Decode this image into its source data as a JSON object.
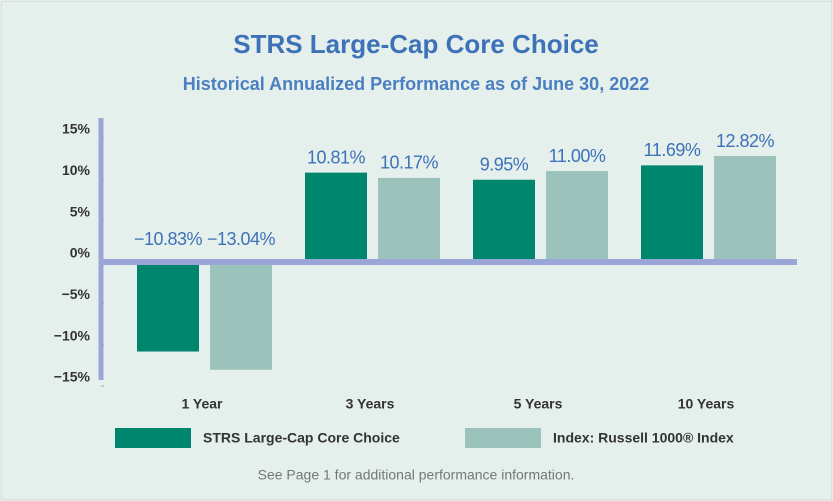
{
  "chart_data": {
    "type": "bar",
    "title": "STRS Large-Cap Core Choice",
    "subtitle": "Historical Annualized Performance as of June 30, 2022",
    "categories": [
      "1 Year",
      "3 Years",
      "5 Years",
      "10 Years"
    ],
    "series": [
      {
        "name": "STRS Large-Cap Core Choice",
        "color": "#00866e",
        "values": [
          -10.83,
          10.81,
          9.95,
          11.69
        ],
        "value_labels": [
          "−10.83%",
          "10.81%",
          "9.95%",
          "11.69%"
        ]
      },
      {
        "name": "Index: Russell 1000® Index",
        "color": "#9cc2bc",
        "values": [
          -13.04,
          10.17,
          11.0,
          12.82
        ],
        "value_labels": [
          "−13.04%",
          "10.17%",
          "11.00%",
          "12.82%"
        ]
      }
    ],
    "ylim": [
      -15,
      15
    ],
    "yticks": [
      {
        "value": 15,
        "label": "15%"
      },
      {
        "value": 10,
        "label": "10%"
      },
      {
        "value": 5,
        "label": "5%"
      },
      {
        "value": 0,
        "label": "0%"
      },
      {
        "value": -5,
        "label": "−5%"
      },
      {
        "value": -10,
        "label": "−10%"
      },
      {
        "value": -15,
        "label": "−15%"
      }
    ],
    "footnote": "See Page 1 for additional performance information."
  }
}
